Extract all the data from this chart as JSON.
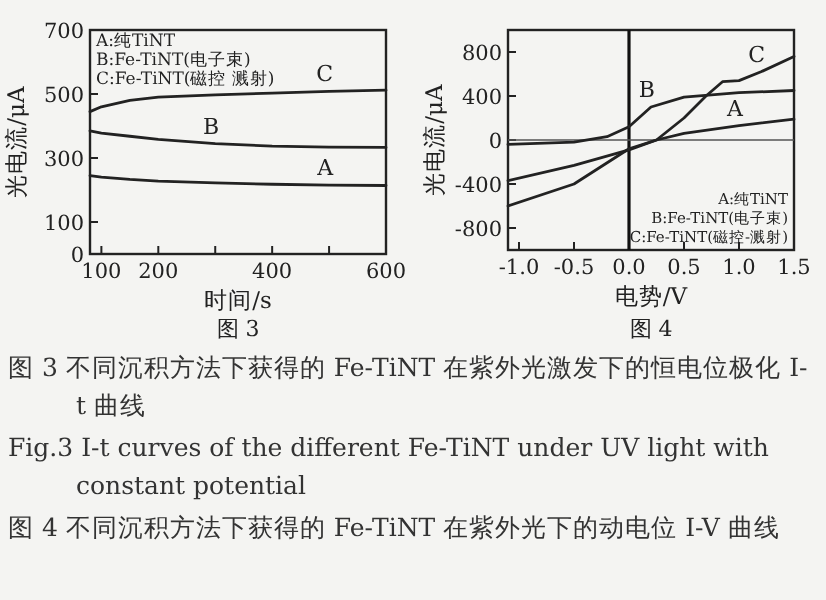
{
  "chart_data": [
    {
      "type": "line",
      "xlabel": "时间/s",
      "ylabel": "光电流/μA",
      "xlim": [
        80,
        600
      ],
      "xticks": [
        100,
        200,
        {
          "value": 300,
          "label": null
        },
        400,
        {
          "value": 500,
          "label": null
        },
        600
      ],
      "ylim": [
        0,
        700
      ],
      "yticks": [
        0,
        100,
        300,
        500,
        700
      ],
      "grid": false,
      "x": [
        80,
        100,
        150,
        200,
        300,
        400,
        500,
        600
      ],
      "series": [
        {
          "name": "A",
          "color": "#222222",
          "values": [
            245,
            240,
            233,
            228,
            222,
            218,
            215,
            214
          ]
        },
        {
          "name": "B",
          "color": "#222222",
          "values": [
            385,
            378,
            368,
            358,
            345,
            337,
            334,
            333
          ]
        },
        {
          "name": "C",
          "color": "#222222",
          "values": [
            445,
            460,
            480,
            490,
            497,
            503,
            508,
            512
          ]
        }
      ],
      "annotations": [
        "A:纯TiNT",
        "B:Fe-TiNT(电子束)",
        "C:Fe-TiNT(磁控 溅射)",
        "图 3"
      ]
    },
    {
      "type": "line",
      "xlabel": "电势/V",
      "ylabel": "光电流/μA",
      "xlim": [
        -1.1,
        1.5
      ],
      "xticks": [
        {
          "value": -1,
          "label": "-1.0"
        },
        {
          "value": -0.5,
          "label": "-0.5"
        },
        {
          "value": 0,
          "label": "0.0"
        },
        {
          "value": 0.5,
          "label": "0.5"
        },
        {
          "value": 1,
          "label": "1.0"
        },
        {
          "value": 1.5,
          "label": "1.5"
        }
      ],
      "ylim": [
        -1000,
        1000
      ],
      "yticks": [
        800,
        400,
        0,
        -400,
        -800
      ],
      "grid": false,
      "ref_lines": [
        {
          "axis": "x",
          "value": 0
        },
        {
          "axis": "y",
          "value": 0
        }
      ],
      "series": [
        {
          "name": "A",
          "color": "#222222",
          "x": [
            -1.1,
            -0.5,
            0,
            0.25,
            0.5,
            1.0,
            1.5
          ],
          "values": [
            -370,
            -230,
            -90,
            0,
            60,
            130,
            190
          ]
        },
        {
          "name": "B",
          "color": "#222222",
          "x": [
            -1.1,
            -0.5,
            -0.2,
            0,
            0.2,
            0.5,
            1.0,
            1.5
          ],
          "values": [
            -40,
            -20,
            30,
            120,
            300,
            390,
            430,
            450
          ]
        },
        {
          "name": "C",
          "color": "#222222",
          "x": [
            -1.1,
            -0.5,
            0,
            0.25,
            0.5,
            0.7,
            0.85,
            1.0,
            1.2,
            1.5
          ],
          "values": [
            -600,
            -400,
            -80,
            0,
            200,
            400,
            530,
            540,
            620,
            760
          ]
        }
      ],
      "annotations": [
        "A:纯TiNT",
        "B:Fe-TiNT(电子束)",
        "C:Fe-TiNT(磁控-溅射)",
        "图 4"
      ]
    },
    {
      "type": "other",
      "annotations": [
        "图 3  不同沉积方法下获得的 Fe-TiNT 在紫外光激发下的恒电位极化 I-t 曲线",
        "Fig.3  I-t curves of the different Fe-TiNT under UV light with constant potential",
        "图 4  不同沉积方法下获得的 Fe-TiNT 在紫外光下的动电位 I-V 曲线"
      ]
    }
  ]
}
